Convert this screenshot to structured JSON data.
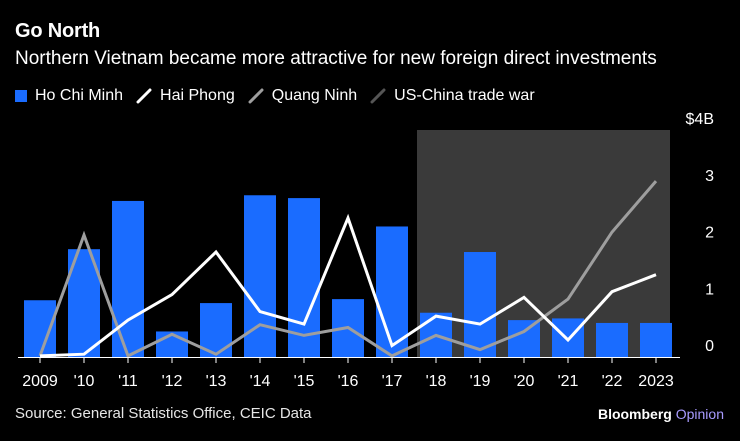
{
  "header": {
    "title": "Go North",
    "subtitle": "Northern Vietnam became more attractive for new foreign direct investments"
  },
  "legend": {
    "items": [
      {
        "label": "Ho Chi Minh",
        "kind": "box",
        "color": "#1a6cff"
      },
      {
        "label": "Hai Phong",
        "kind": "line",
        "color": "#ffffff"
      },
      {
        "label": "Quang Ninh",
        "kind": "line",
        "color": "#9e9e9e"
      },
      {
        "label": "US-China trade war",
        "kind": "line",
        "color": "#555555"
      }
    ]
  },
  "chart_data": {
    "type": "bar",
    "title": "Go North",
    "categories": [
      "2009",
      "'10",
      "'11",
      "'12",
      "'13",
      "'14",
      "'15",
      "'16",
      "'17",
      "'18",
      "'19",
      "'20",
      "'21",
      "'22",
      "2023"
    ],
    "series": [
      {
        "name": "Ho Chi Minh",
        "type": "bar",
        "color": "#1a6cff",
        "values": [
          1.0,
          1.9,
          2.75,
          0.45,
          0.95,
          2.85,
          2.8,
          1.02,
          2.3,
          0.78,
          1.85,
          0.65,
          0.68,
          0.6,
          0.6
        ]
      },
      {
        "name": "Hai Phong",
        "type": "line",
        "color": "#ffffff",
        "values": [
          0.02,
          0.05,
          0.65,
          1.1,
          1.85,
          0.8,
          0.58,
          2.45,
          0.2,
          0.72,
          0.58,
          1.05,
          0.3,
          1.15,
          1.45
        ]
      },
      {
        "name": "Quang Ninh",
        "type": "line",
        "color": "#9e9e9e",
        "values": [
          0.02,
          2.15,
          0.02,
          0.4,
          0.05,
          0.57,
          0.38,
          0.52,
          0.02,
          0.38,
          0.13,
          0.45,
          1.02,
          2.2,
          3.1
        ]
      }
    ],
    "shaded_region": {
      "label": "US-China trade war",
      "from": "'18",
      "to": "2023",
      "color": "#3a3a3a"
    },
    "yaxis": {
      "side": "right",
      "ticks": [
        "0",
        "1",
        "2",
        "3",
        "$4B"
      ],
      "tick_values": [
        0,
        1,
        2,
        3,
        4
      ]
    },
    "ylim": [
      0,
      4
    ],
    "xlabel": "",
    "ylabel": ""
  },
  "footer": {
    "source": "Source: General Statistics Office, CEIC Data",
    "brand_main": "Bloomberg",
    "brand_sub": "Opinion"
  }
}
